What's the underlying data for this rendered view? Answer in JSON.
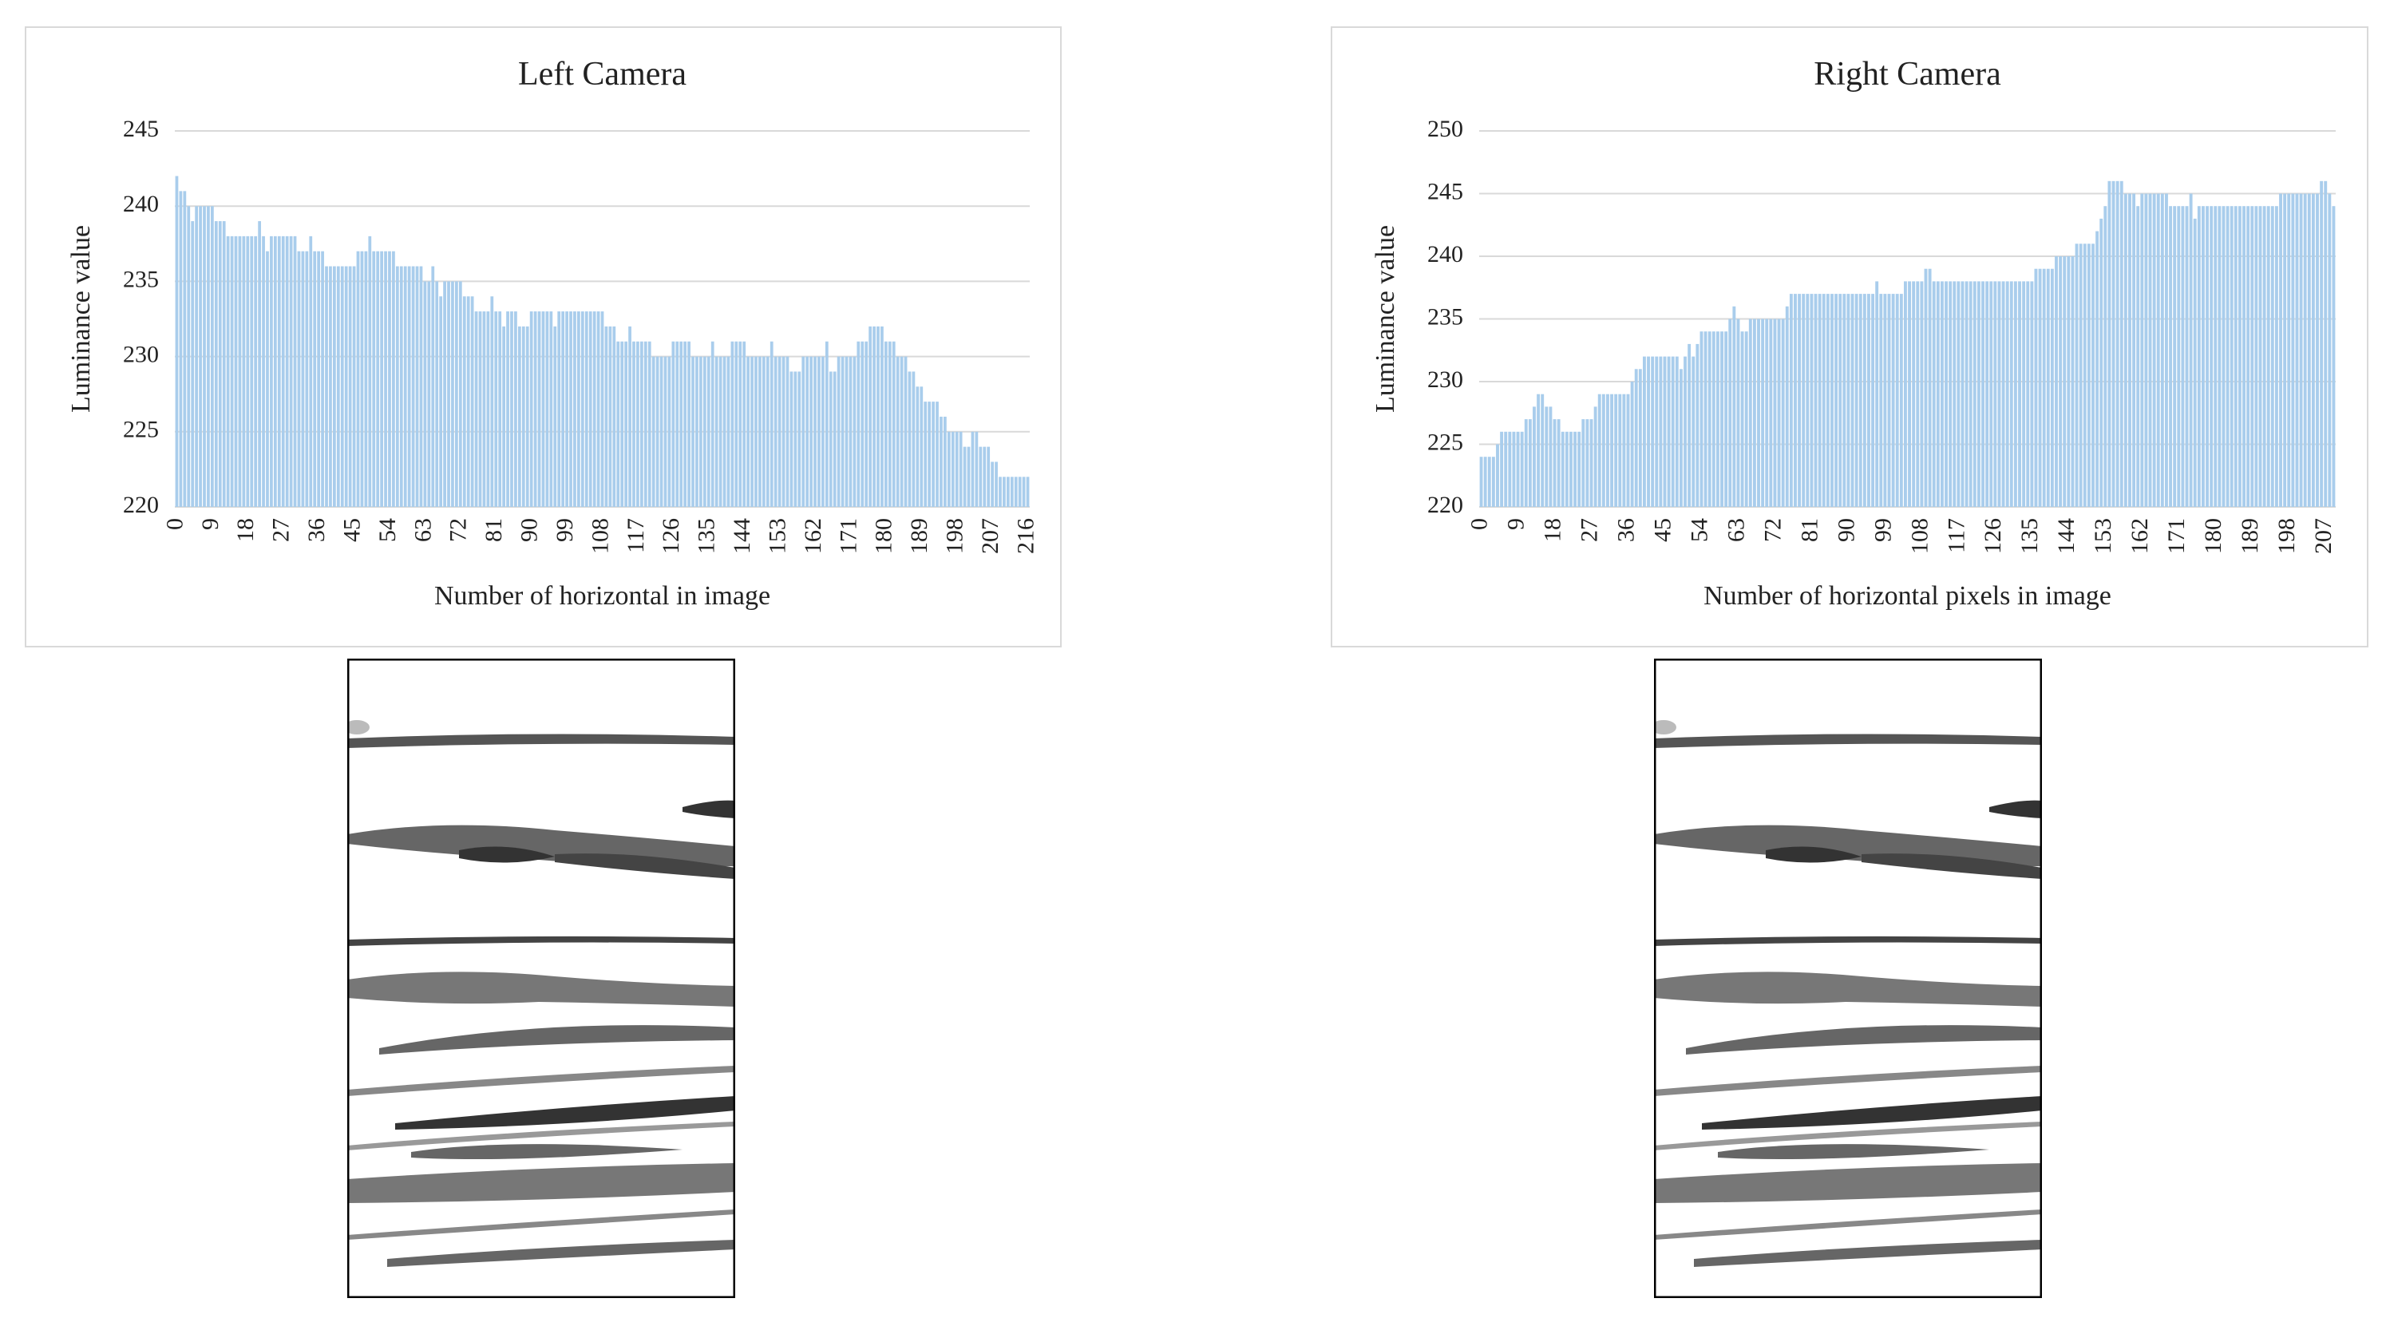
{
  "chart_data": [
    {
      "type": "bar",
      "title": "Left Camera",
      "x_label": "Number of horizontal in image",
      "y_label": "Luminance value",
      "color": "#a9cdec",
      "grid": true,
      "ylim": [
        220,
        245
      ],
      "yticks": [
        220,
        225,
        230,
        235,
        240,
        245
      ],
      "categories": [
        0,
        null,
        null,
        null,
        null,
        null,
        null,
        null,
        null,
        9,
        null,
        null,
        null,
        null,
        null,
        null,
        null,
        null,
        18,
        null,
        null,
        null,
        null,
        null,
        null,
        null,
        null,
        27,
        null,
        null,
        null,
        null,
        null,
        null,
        null,
        null,
        36,
        null,
        null,
        null,
        null,
        null,
        null,
        null,
        null,
        45,
        null,
        null,
        null,
        null,
        null,
        null,
        null,
        null,
        54,
        null,
        null,
        null,
        null,
        null,
        null,
        null,
        null,
        63,
        null,
        null,
        null,
        null,
        null,
        null,
        null,
        null,
        72,
        null,
        null,
        null,
        null,
        null,
        null,
        null,
        null,
        81,
        null,
        null,
        null,
        null,
        null,
        null,
        null,
        null,
        90,
        null,
        null,
        null,
        null,
        null,
        null,
        null,
        null,
        99,
        null,
        null,
        null,
        null,
        null,
        null,
        null,
        null,
        108,
        null,
        null,
        null,
        null,
        null,
        null,
        null,
        null,
        117,
        null,
        null,
        null,
        null,
        null,
        null,
        null,
        null,
        126,
        null,
        null,
        null,
        null,
        null,
        null,
        null,
        null,
        135,
        null,
        null,
        null,
        null,
        null,
        null,
        null,
        null,
        144,
        null,
        null,
        null,
        null,
        null,
        null,
        null,
        null,
        153,
        null,
        null,
        null,
        null,
        null,
        null,
        null,
        null,
        162,
        null,
        null,
        null,
        null,
        null,
        null,
        null,
        null,
        171,
        null,
        null,
        null,
        null,
        null,
        null,
        null,
        null,
        180,
        null,
        null,
        null,
        null,
        null,
        null,
        null,
        null,
        189,
        null,
        null,
        null,
        null,
        null,
        null,
        null,
        null,
        198,
        null,
        null,
        null,
        null,
        null,
        null,
        null,
        null,
        207,
        null,
        null,
        null,
        null,
        null,
        null,
        null,
        null,
        216
      ],
      "values": [
        242,
        241,
        241,
        240,
        239,
        240,
        240,
        240,
        240,
        240,
        239,
        239,
        239,
        238,
        238,
        238,
        238,
        238,
        238,
        238,
        238,
        239,
        238,
        237,
        238,
        238,
        238,
        238,
        238,
        238,
        238,
        237,
        237,
        237,
        238,
        237,
        237,
        237,
        236,
        236,
        236,
        236,
        236,
        236,
        236,
        236,
        237,
        237,
        237,
        238,
        237,
        237,
        237,
        237,
        237,
        237,
        236,
        236,
        236,
        236,
        236,
        236,
        236,
        235,
        235,
        236,
        235,
        234,
        235,
        235,
        235,
        235,
        235,
        234,
        234,
        234,
        233,
        233,
        233,
        233,
        234,
        233,
        233,
        232,
        233,
        233,
        233,
        232,
        232,
        232,
        233,
        233,
        233,
        233,
        233,
        233,
        232,
        233,
        233,
        233,
        233,
        233,
        233,
        233,
        233,
        233,
        233,
        233,
        233,
        232,
        232,
        232,
        231,
        231,
        231,
        232,
        231,
        231,
        231,
        231,
        231,
        230,
        230,
        230,
        230,
        230,
        231,
        231,
        231,
        231,
        231,
        230,
        230,
        230,
        230,
        230,
        231,
        230,
        230,
        230,
        230,
        231,
        231,
        231,
        231,
        230,
        230,
        230,
        230,
        230,
        230,
        231,
        230,
        230,
        230,
        230,
        229,
        229,
        229,
        230,
        230,
        230,
        230,
        230,
        230,
        231,
        229,
        229,
        230,
        230,
        230,
        230,
        230,
        231,
        231,
        231,
        232,
        232,
        232,
        232,
        231,
        231,
        231,
        230,
        230,
        230,
        229,
        229,
        228,
        228,
        227,
        227,
        227,
        227,
        226,
        226,
        225,
        225,
        225,
        225,
        224,
        224,
        225,
        225,
        224,
        224,
        224,
        223,
        223,
        222,
        222,
        222,
        222,
        222,
        222,
        222,
        222
      ]
    },
    {
      "type": "bar",
      "title": "Right Camera",
      "x_label": "Number of horizontal pixels in image",
      "y_label": "Luminance value",
      "color": "#a9cdec",
      "grid": true,
      "ylim": [
        220,
        250
      ],
      "yticks": [
        220,
        225,
        230,
        235,
        240,
        245,
        250
      ],
      "categories": [
        0,
        null,
        null,
        null,
        null,
        null,
        null,
        null,
        null,
        9,
        null,
        null,
        null,
        null,
        null,
        null,
        null,
        null,
        18,
        null,
        null,
        null,
        null,
        null,
        null,
        null,
        null,
        27,
        null,
        null,
        null,
        null,
        null,
        null,
        null,
        null,
        36,
        null,
        null,
        null,
        null,
        null,
        null,
        null,
        null,
        45,
        null,
        null,
        null,
        null,
        null,
        null,
        null,
        null,
        54,
        null,
        null,
        null,
        null,
        null,
        null,
        null,
        null,
        63,
        null,
        null,
        null,
        null,
        null,
        null,
        null,
        null,
        72,
        null,
        null,
        null,
        null,
        null,
        null,
        null,
        null,
        81,
        null,
        null,
        null,
        null,
        null,
        null,
        null,
        null,
        90,
        null,
        null,
        null,
        null,
        null,
        null,
        null,
        null,
        99,
        null,
        null,
        null,
        null,
        null,
        null,
        null,
        null,
        108,
        null,
        null,
        null,
        null,
        null,
        null,
        null,
        null,
        117,
        null,
        null,
        null,
        null,
        null,
        null,
        null,
        null,
        126,
        null,
        null,
        null,
        null,
        null,
        null,
        null,
        null,
        135,
        null,
        null,
        null,
        null,
        null,
        null,
        null,
        null,
        144,
        null,
        null,
        null,
        null,
        null,
        null,
        null,
        null,
        153,
        null,
        null,
        null,
        null,
        null,
        null,
        null,
        null,
        162,
        null,
        null,
        null,
        null,
        null,
        null,
        null,
        null,
        171,
        null,
        null,
        null,
        null,
        null,
        null,
        null,
        null,
        180,
        null,
        null,
        null,
        null,
        null,
        null,
        null,
        null,
        189,
        null,
        null,
        null,
        null,
        null,
        null,
        null,
        null,
        198,
        null,
        null,
        null,
        null,
        null,
        null,
        null,
        null,
        207,
        null,
        null
      ],
      "values": [
        224,
        224,
        224,
        224,
        225,
        226,
        226,
        226,
        226,
        226,
        226,
        227,
        227,
        228,
        229,
        229,
        228,
        228,
        227,
        227,
        226,
        226,
        226,
        226,
        226,
        227,
        227,
        227,
        228,
        229,
        229,
        229,
        229,
        229,
        229,
        229,
        229,
        230,
        231,
        231,
        232,
        232,
        232,
        232,
        232,
        232,
        232,
        232,
        232,
        231,
        232,
        233,
        232,
        233,
        234,
        234,
        234,
        234,
        234,
        234,
        234,
        235,
        236,
        235,
        234,
        234,
        235,
        235,
        235,
        235,
        235,
        235,
        235,
        235,
        235,
        236,
        237,
        237,
        237,
        237,
        237,
        237,
        237,
        237,
        237,
        237,
        237,
        237,
        237,
        237,
        237,
        237,
        237,
        237,
        237,
        237,
        237,
        238,
        237,
        237,
        237,
        237,
        237,
        237,
        238,
        238,
        238,
        238,
        238,
        239,
        239,
        238,
        238,
        238,
        238,
        238,
        238,
        238,
        238,
        238,
        238,
        238,
        238,
        238,
        238,
        238,
        238,
        238,
        238,
        238,
        238,
        238,
        238,
        238,
        238,
        238,
        239,
        239,
        239,
        239,
        239,
        240,
        240,
        240,
        240,
        240,
        241,
        241,
        241,
        241,
        241,
        242,
        243,
        244,
        246,
        246,
        246,
        246,
        245,
        245,
        245,
        244,
        245,
        245,
        245,
        245,
        245,
        245,
        245,
        244,
        244,
        244,
        244,
        244,
        245,
        243,
        244,
        244,
        244,
        244,
        244,
        244,
        244,
        244,
        244,
        244,
        244,
        244,
        244,
        244,
        244,
        244,
        244,
        244,
        244,
        244,
        245,
        245,
        245,
        245,
        245,
        245,
        245,
        245,
        245,
        245,
        246,
        246,
        245,
        244
      ]
    }
  ]
}
